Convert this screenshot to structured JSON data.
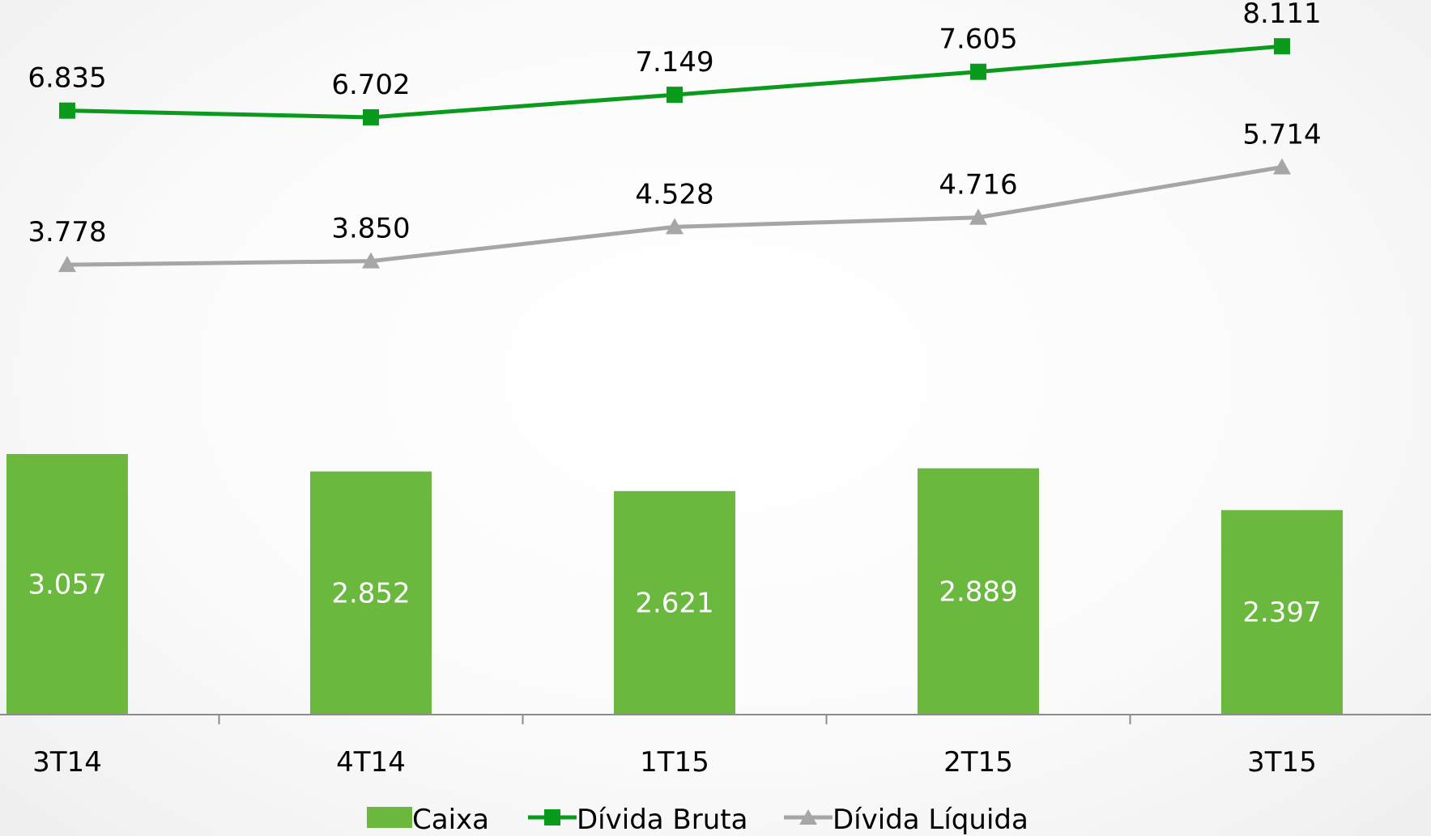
{
  "colors": {
    "caixa": "#6bb83f",
    "bruta": "#0a9a1c",
    "liquida": "#a6a6a6",
    "axis": "#8c8c8c",
    "text": "#000000",
    "bar_label": "#ffffff"
  },
  "chart_data": {
    "type": "bar",
    "categories": [
      "3T14",
      "4T14",
      "1T15",
      "2T15",
      "3T15"
    ],
    "series": [
      {
        "name": "Caixa",
        "kind": "bar",
        "values": [
          3.057,
          2.852,
          2.621,
          2.889,
          2.397
        ],
        "labels": [
          "3.057",
          "2.852",
          "2.621",
          "2.889",
          "2.397"
        ]
      },
      {
        "name": "Dívida Bruta",
        "kind": "line",
        "marker": "square",
        "values": [
          6.835,
          6.702,
          7.149,
          7.605,
          8.111
        ],
        "labels": [
          "6.835",
          "6.702",
          "7.149",
          "7.605",
          "8.111"
        ]
      },
      {
        "name": "Dívida Líquida",
        "kind": "line",
        "marker": "triangle",
        "values": [
          3.778,
          3.85,
          4.528,
          4.716,
          5.714
        ],
        "labels": [
          "3.778",
          "3.850",
          "4.528",
          "4.716",
          "5.714"
        ]
      }
    ],
    "legend": [
      "Caixa",
      "Dívida Bruta",
      "Dívida Líquida"
    ],
    "legend_position": "bottom",
    "grid": false,
    "title": "",
    "xlabel": "",
    "ylabel": ""
  }
}
